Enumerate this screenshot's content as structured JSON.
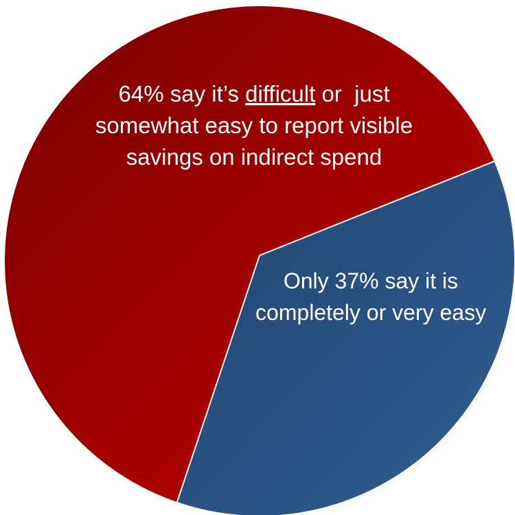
{
  "chart_data": {
    "type": "pie",
    "slices": [
      {
        "key": "difficult",
        "value": 64,
        "color": "#b00000",
        "label_lines": [
          [
            {
              "text": "64% say it’s ",
              "underline": false
            },
            {
              "text": "difficult",
              "underline": true
            },
            {
              "text": " or  just",
              "underline": false
            }
          ],
          [
            {
              "text": "somewhat easy to report visible",
              "underline": false
            }
          ],
          [
            {
              "text": "savings on indirect spend",
              "underline": false
            }
          ]
        ]
      },
      {
        "key": "easy",
        "value": 37,
        "color": "#2c5282",
        "label_lines": [
          [
            {
              "text": "Only 37% say it is",
              "underline": false
            }
          ],
          [
            {
              "text": "completely or very easy",
              "underline": false
            }
          ]
        ]
      }
    ],
    "legend": "none"
  }
}
